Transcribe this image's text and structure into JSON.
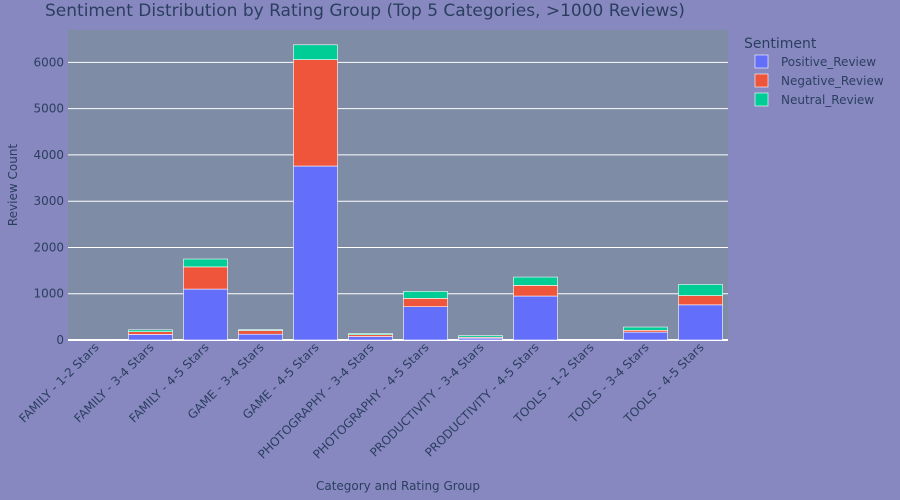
{
  "chart_data": {
    "type": "bar",
    "stacked": true,
    "title": "Sentiment Distribution by Rating Group (Top 5 Categories, >1000 Reviews)",
    "xlabel": "Category and Rating Group",
    "ylabel": "Review Count",
    "ylim": [
      0,
      6700
    ],
    "yticks": [
      0,
      1000,
      2000,
      3000,
      4000,
      5000,
      6000
    ],
    "grid": true,
    "legend_title": "Sentiment",
    "legend_position": "top-right",
    "categories": [
      "FAMILY - 1-2 Stars",
      "FAMILY - 3-4 Stars",
      "FAMILY - 4-5 Stars",
      "GAME - 3-4 Stars",
      "GAME - 4-5 Stars",
      "PHOTOGRAPHY - 3-4 Stars",
      "PHOTOGRAPHY - 4-5 Stars",
      "PRODUCTIVITY - 3-4 Stars",
      "PRODUCTIVITY - 4-5 Stars",
      "TOOLS - 1-2 Stars",
      "TOOLS - 3-4 Stars",
      "TOOLS - 4-5 Stars"
    ],
    "series": [
      {
        "name": "Positive_Review",
        "color": "#636efa",
        "values": [
          5,
          120,
          1100,
          125,
          3760,
          75,
          720,
          40,
          950,
          3,
          170,
          760
        ]
      },
      {
        "name": "Negative_Review",
        "color": "#ef553b",
        "values": [
          3,
          60,
          480,
          80,
          2300,
          40,
          180,
          20,
          230,
          2,
          40,
          200
        ]
      },
      {
        "name": "Neutral_Review",
        "color": "#00cc96",
        "values": [
          2,
          40,
          170,
          20,
          320,
          25,
          150,
          35,
          180,
          1,
          70,
          240
        ]
      }
    ]
  }
}
